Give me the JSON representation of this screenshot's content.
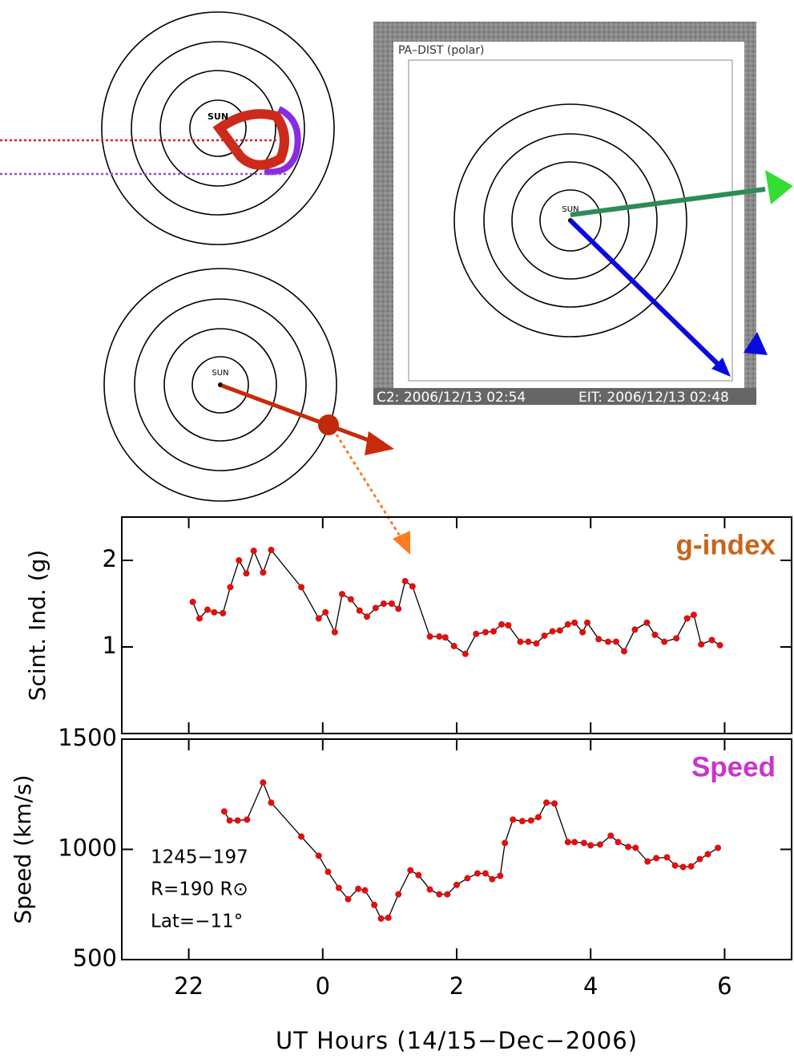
{
  "diagram": {
    "sun_labels": [
      "SUN",
      "SUN",
      "SUN"
    ],
    "panel_title": "PA–DIST (polar)",
    "c2_time": "C2: 2006/12/13 02:54",
    "eit_time": "EIT: 2006/12/13 02:48"
  },
  "chart_data": [
    {
      "type": "line",
      "ylabel": "Scint. Ind. (g)",
      "xlim": [
        -3,
        7
      ],
      "ylim": [
        0,
        2.5
      ],
      "yticks": [
        1,
        2
      ],
      "series": [
        {
          "name": "g-index",
          "color": "#000000",
          "marker_color": "#e01010",
          "label_color": "#c8651b",
          "x": [
            -1.94,
            -1.84,
            -1.72,
            -1.62,
            -1.49,
            -1.38,
            -1.25,
            -1.14,
            -1.03,
            -0.89,
            -0.77,
            -0.32,
            -0.06,
            0.04,
            0.18,
            0.29,
            0.42,
            0.55,
            0.66,
            0.79,
            0.91,
            1.03,
            1.13,
            1.23,
            1.34,
            1.6,
            1.74,
            1.83,
            1.96,
            2.13,
            2.29,
            2.43,
            2.55,
            2.67,
            2.77,
            2.95,
            3.07,
            3.19,
            3.31,
            3.43,
            3.54,
            3.66,
            3.76,
            3.88,
            3.95,
            4.12,
            4.26,
            4.38,
            4.5,
            4.66,
            4.84,
            4.96,
            5.1,
            5.28,
            5.44,
            5.54,
            5.65,
            5.81,
            5.93
          ],
          "values": [
            1.52,
            1.33,
            1.43,
            1.4,
            1.39,
            1.69,
            2.0,
            1.85,
            2.11,
            1.86,
            2.12,
            1.69,
            1.33,
            1.4,
            1.17,
            1.61,
            1.55,
            1.42,
            1.35,
            1.45,
            1.5,
            1.5,
            1.44,
            1.76,
            1.7,
            1.12,
            1.12,
            1.11,
            1.01,
            0.92,
            1.15,
            1.17,
            1.18,
            1.26,
            1.25,
            1.06,
            1.06,
            1.04,
            1.13,
            1.18,
            1.19,
            1.26,
            1.28,
            1.17,
            1.28,
            1.09,
            1.06,
            1.06,
            0.95,
            1.2,
            1.28,
            1.14,
            1.06,
            1.1,
            1.33,
            1.37,
            1.03,
            1.08,
            1.02
          ]
        }
      ]
    },
    {
      "type": "line",
      "ylabel": "Speed (km/s)",
      "xlabel": "UT Hours (14/15−Dec−2006)",
      "xlim": [
        -3,
        7
      ],
      "ylim": [
        500,
        1500
      ],
      "xticks": [
        {
          "value": -2,
          "label": "22"
        },
        0,
        2,
        4,
        6
      ],
      "yticks": [
        500,
        1000,
        1500
      ],
      "annotations": [
        "1245−197",
        "R=190 R⊙",
        "Lat=−11°"
      ],
      "series": [
        {
          "name": "Speed",
          "color": "#000000",
          "marker_color": "#e01010",
          "label_color": "#cc33cc",
          "x": [
            -1.47,
            -1.39,
            -1.27,
            -1.13,
            -0.89,
            -0.77,
            -0.32,
            -0.06,
            0.08,
            0.24,
            0.38,
            0.53,
            0.63,
            0.77,
            0.87,
            0.98,
            1.13,
            1.31,
            1.43,
            1.6,
            1.74,
            1.86,
            2.0,
            2.16,
            2.31,
            2.43,
            2.53,
            2.65,
            2.72,
            2.84,
            2.98,
            3.11,
            3.22,
            3.34,
            3.46,
            3.66,
            3.76,
            3.9,
            4.0,
            4.14,
            4.3,
            4.41,
            4.56,
            4.67,
            4.85,
            4.98,
            5.14,
            5.26,
            5.38,
            5.5,
            5.63,
            5.75,
            5.9
          ],
          "values": [
            1172,
            1131,
            1131,
            1135,
            1303,
            1212,
            1058,
            971,
            898,
            825,
            774,
            821,
            814,
            748,
            686,
            690,
            796,
            905,
            883,
            818,
            796,
            796,
            839,
            869,
            891,
            891,
            865,
            880,
            1029,
            1135,
            1128,
            1131,
            1146,
            1212,
            1208,
            1033,
            1033,
            1029,
            1018,
            1022,
            1062,
            1033,
            1011,
            1007,
            945,
            960,
            964,
            927,
            920,
            923,
            956,
            978,
            1007
          ]
        }
      ]
    }
  ]
}
